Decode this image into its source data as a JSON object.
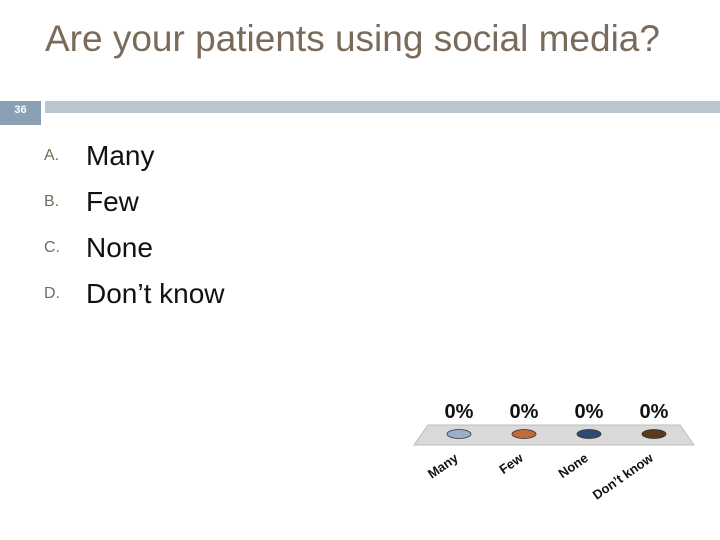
{
  "slide": {
    "number": "36"
  },
  "title": "Are your patients using social media?",
  "options": [
    {
      "letter": "A.",
      "text": "Many"
    },
    {
      "letter": "B.",
      "text": "Few"
    },
    {
      "letter": "C.",
      "text": "None"
    },
    {
      "letter": "D.",
      "text": "Don’t know"
    }
  ],
  "colors": {
    "title": "#7a6a5a",
    "accent_bar": "#b9c7d3",
    "slide_num_box": "#8aa0b4",
    "floor": "#d9d9d9"
  },
  "chart_data": {
    "type": "bar",
    "categories": [
      "Many",
      "Few",
      "None",
      "Don’t know"
    ],
    "values": [
      0,
      0,
      0,
      0
    ],
    "value_labels": [
      "0%",
      "0%",
      "0%",
      "0%"
    ],
    "colors": [
      "#9bb0c8",
      "#c0693a",
      "#2e4a6e",
      "#5a3a1c"
    ],
    "title": "",
    "xlabel": "",
    "ylabel": "",
    "ylim": [
      0,
      100
    ],
    "grid": false,
    "legend": "none"
  }
}
